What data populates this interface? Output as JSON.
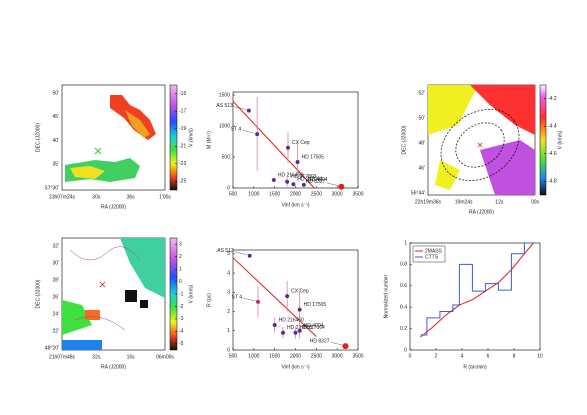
{
  "chart_data": [
    {
      "type": "map",
      "xlabel": "RA (J2000)",
      "ylabel": "DEC (J2000)",
      "xtick_labels": [
        "23h07m24s",
        "30s",
        "36s",
        "1'00s"
      ],
      "ytick_labels": [
        "50'",
        "45'",
        "40'",
        "35'",
        "57°30'"
      ],
      "colorbar_label": "V (km/s)",
      "cbar_lim": [
        -14,
        -26
      ],
      "cbar_ticks": [
        -15,
        -17,
        -19,
        -21,
        -23,
        -25
      ]
    },
    {
      "type": "scatter",
      "xlabel": "Vinf (km s⁻¹)",
      "ylabel": "M (M☉)",
      "xlim": [
        500,
        3500
      ],
      "xticks": [
        500,
        1000,
        1500,
        2000,
        2500,
        3000,
        3500
      ],
      "ylim": [
        0,
        1550
      ],
      "yticks": [
        0,
        500,
        1000,
        1500
      ],
      "names": [
        "AS 513",
        "ST 4",
        "HD 216450",
        "HD 217803",
        "HD 217064",
        "CX Cep",
        "HD 17505",
        "HD 4004",
        "HD 8327"
      ],
      "x": [
        880,
        1080,
        1480,
        1800,
        1950,
        1820,
        2050,
        2200,
        3100
      ],
      "values": [
        1250,
        870,
        130,
        100,
        60,
        650,
        420,
        50,
        20
      ],
      "errors": [
        0,
        600,
        0,
        80,
        0,
        250,
        300,
        0,
        0
      ],
      "colors": [
        "#5b2d8e",
        "#5b2d8e",
        "#5b2d8e",
        "#5b2d8e",
        "#5b2d8e",
        "#5b2d8e",
        "#5b2d8e",
        "#5b2d8e",
        "#e41a1c"
      ],
      "fit": {
        "x": [
          500,
          2450
        ],
        "y": [
          1400,
          0
        ]
      },
      "fit_color": "#e41a1c",
      "error_color": "#d9849a"
    },
    {
      "type": "map",
      "xlabel": "RA (J2000)",
      "ylabel": "DEC (J2000)",
      "xtick_labels": [
        "22h19m36s",
        "19m24s",
        "12s",
        "00s"
      ],
      "ytick_labels": [
        "52'",
        "50'",
        "48'",
        "46'",
        "56°44'"
      ],
      "colorbar_label": "V (km/s)",
      "cbar_lim": [
        -4.1,
        -4.9
      ],
      "cbar_ticks": [
        -4.2,
        -4.4,
        -4.6,
        -4.8
      ]
    },
    {
      "type": "map",
      "xlabel": "RA (J2000)",
      "ylabel": "DEC (J2000)",
      "xtick_labels": [
        "21h07m48s",
        "32s",
        "16s",
        "06m00s"
      ],
      "ytick_labels": [
        "32'",
        "30'",
        "28'",
        "26'",
        "24'",
        "22'",
        "48°20'"
      ],
      "colorbar_label": "V (km/s)",
      "cbar_lim": [
        3.5,
        -5.5
      ],
      "cbar_ticks": [
        3,
        2,
        1,
        0,
        -1,
        -2,
        -3,
        -4,
        -5
      ]
    },
    {
      "type": "scatter",
      "xlabel": "Vinf (km s⁻¹)",
      "ylabel": "R (pc)",
      "xlim": [
        500,
        3500
      ],
      "xticks": [
        500,
        1000,
        1500,
        2000,
        2500,
        3000,
        3500
      ],
      "ylim": [
        0,
        5.2
      ],
      "yticks": [
        0,
        1,
        2,
        3,
        4,
        5
      ],
      "names": [
        "AS 513",
        "CX Cep",
        "HD 17505",
        "ST 4",
        "HD 216450",
        "HD 217803",
        "HD 217064",
        "HD 4004",
        "HD 8327"
      ],
      "x": [
        900,
        1800,
        2100,
        1100,
        1500,
        1700,
        2000,
        2100,
        3200
      ],
      "values": [
        4.9,
        2.8,
        2.1,
        2.5,
        1.3,
        0.9,
        0.9,
        1.0,
        0.2
      ],
      "errors": [
        0,
        0.8,
        1.1,
        0.8,
        0.4,
        0.3,
        0.3,
        0.4,
        0
      ],
      "colors": [
        "#5b2d8e",
        "#5b2d8e",
        "#5b2d8e",
        "#b0307a",
        "#5b2d8e",
        "#5b2d8e",
        "#5b2d8e",
        "#5b2d8e",
        "#e41a1c"
      ],
      "fit": {
        "x": [
          500,
          2500
        ],
        "y": [
          4.8,
          0.7
        ]
      },
      "fit_color": "#e41a1c",
      "error_color": "#d9849a"
    },
    {
      "type": "line",
      "xlabel": "R (arcmin)",
      "ylabel": "Normalized number",
      "xlim": [
        0,
        10
      ],
      "xticks": [
        0,
        2,
        4,
        6,
        8,
        10
      ],
      "ylim": [
        0,
        1
      ],
      "yticks": [
        0,
        0.2,
        0.4,
        0.6,
        0.8,
        1
      ],
      "legend": "upper left",
      "series": [
        {
          "name": "2MASS",
          "color": "#e41a1c",
          "step": false,
          "x": [
            0.8,
            1.8,
            2.8,
            3.8,
            4.8,
            5.8,
            6.8,
            7.8,
            8.8,
            9.5
          ],
          "values": [
            0.12,
            0.22,
            0.33,
            0.42,
            0.47,
            0.55,
            0.63,
            0.75,
            0.9,
            1.0
          ]
        },
        {
          "name": "CTTS",
          "color": "#3a5fcd",
          "step": true,
          "x": [
            0.8,
            1.3,
            2.3,
            3.3,
            3.8,
            4.8,
            5.8,
            6.8,
            7.8,
            8.8,
            9.5
          ],
          "values": [
            0.14,
            0.3,
            0.36,
            0.42,
            0.8,
            0.55,
            0.62,
            0.56,
            0.9,
            1.0,
            1.0
          ]
        }
      ]
    }
  ]
}
